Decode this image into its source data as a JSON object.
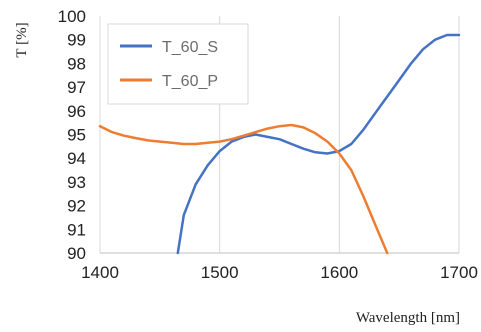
{
  "chart_data": {
    "type": "line",
    "title": "",
    "xlabel": "Wavelength [nm]",
    "ylabel": "T [%]",
    "xlim": [
      1400,
      1700
    ],
    "ylim": [
      90,
      100
    ],
    "x_ticks": [
      1400,
      1500,
      1600,
      1700
    ],
    "y_ticks": [
      90,
      91,
      92,
      93,
      94,
      95,
      96,
      97,
      98,
      99,
      100
    ],
    "grid": "vertical gridlines at major x ticks",
    "legend": "top-left inside plot",
    "series": [
      {
        "name": "T_60_S",
        "color": "#4472C4",
        "x": [
          1465,
          1470,
          1480,
          1490,
          1500,
          1510,
          1520,
          1530,
          1540,
          1550,
          1560,
          1570,
          1580,
          1590,
          1600,
          1610,
          1620,
          1630,
          1640,
          1650,
          1660,
          1670,
          1680,
          1690,
          1700
        ],
        "y": [
          90.0,
          91.6,
          92.9,
          93.7,
          94.3,
          94.7,
          94.9,
          95.0,
          94.9,
          94.8,
          94.6,
          94.4,
          94.25,
          94.2,
          94.3,
          94.6,
          95.2,
          95.9,
          96.6,
          97.3,
          98.0,
          98.6,
          99.0,
          99.2,
          99.2
        ]
      },
      {
        "name": "T_60_P",
        "color": "#ED7D31",
        "x": [
          1400,
          1410,
          1420,
          1430,
          1440,
          1450,
          1460,
          1470,
          1480,
          1490,
          1500,
          1510,
          1520,
          1530,
          1540,
          1550,
          1560,
          1570,
          1580,
          1590,
          1600,
          1610,
          1620,
          1630,
          1640
        ],
        "y": [
          95.35,
          95.1,
          94.95,
          94.85,
          94.75,
          94.7,
          94.65,
          94.6,
          94.6,
          94.65,
          94.7,
          94.8,
          94.95,
          95.1,
          95.25,
          95.35,
          95.4,
          95.3,
          95.05,
          94.7,
          94.2,
          93.5,
          92.4,
          91.2,
          90.0
        ]
      }
    ]
  }
}
